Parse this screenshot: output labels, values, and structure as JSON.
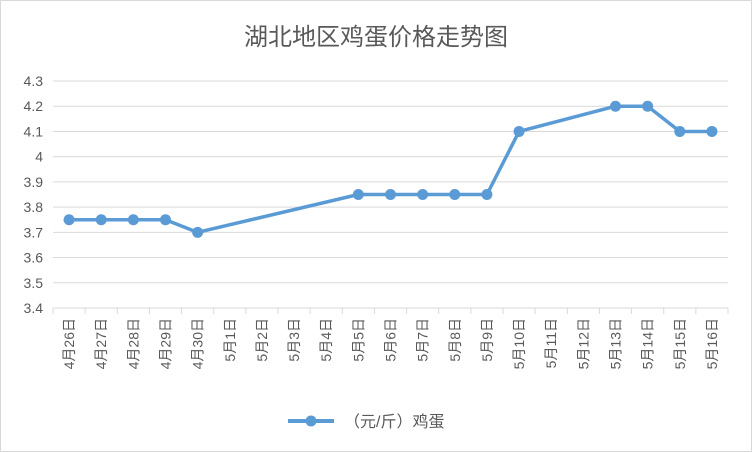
{
  "chart_data": {
    "type": "line",
    "title": "湖北地区鸡蛋价格走势图",
    "xlabel": "",
    "ylabel": "",
    "categories": [
      "4月26日",
      "4月27日",
      "4月28日",
      "4月29日",
      "4月30日",
      "5月1日",
      "5月2日",
      "5月3日",
      "5月4日",
      "5月5日",
      "5月6日",
      "5月7日",
      "5月8日",
      "5月9日",
      "5月10日",
      "5月11日",
      "5月12日",
      "5月13日",
      "5月14日",
      "5月15日",
      "5月16日"
    ],
    "series": [
      {
        "name": "（元/斤）鸡蛋",
        "values": [
          3.75,
          3.75,
          3.75,
          3.75,
          3.7,
          null,
          null,
          null,
          null,
          3.85,
          3.85,
          3.85,
          3.85,
          3.85,
          4.1,
          null,
          null,
          4.2,
          4.2,
          4.1,
          4.1
        ]
      }
    ],
    "ylim": [
      3.4,
      4.3
    ],
    "yticks": [
      "3.4",
      "3.5",
      "3.6",
      "3.7",
      "3.8",
      "3.9",
      "4",
      "4.1",
      "4.2",
      "4.3"
    ],
    "grid": true,
    "legend_position": "bottom",
    "line_color": "#5b9bd5",
    "connect_gaps": true
  }
}
